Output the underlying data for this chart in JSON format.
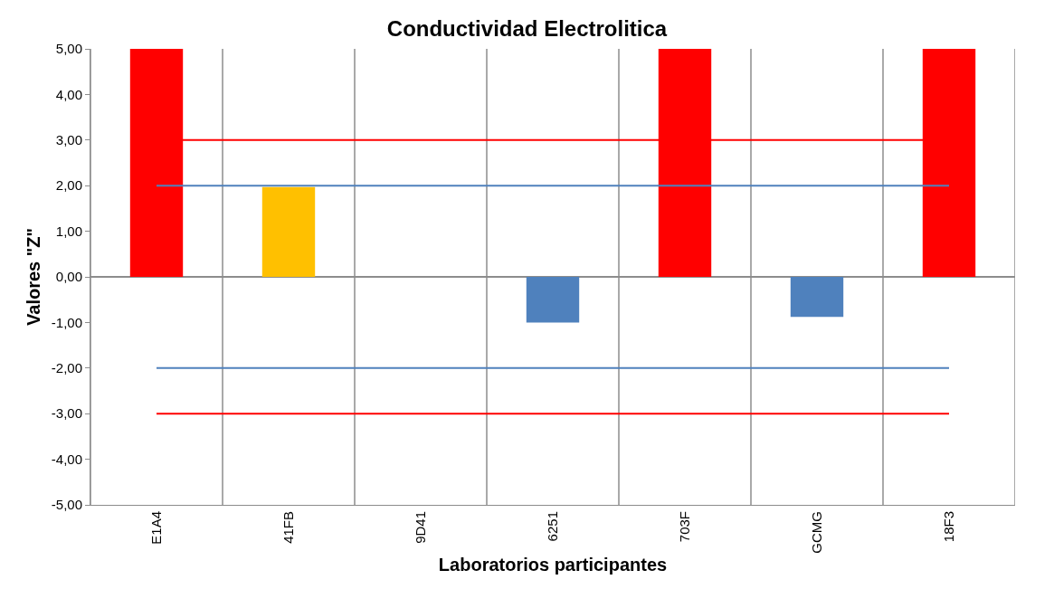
{
  "chart_data": {
    "type": "bar",
    "title": "Conductividad Electrolitica",
    "xlabel": "Laboratorios participantes",
    "ylabel": "Valores \"Z\"",
    "categories": [
      "E1A4",
      "41FB",
      "9D41",
      "6251",
      "703F",
      "GCMG",
      "18F3"
    ],
    "values": [
      5,
      1.97,
      0,
      -1.0,
      5,
      -0.88,
      5
    ],
    "colors": [
      "#ff0000",
      "#ffc000",
      "#4f81bd",
      "#4f81bd",
      "#ff0000",
      "#4f81bd",
      "#ff0000"
    ],
    "ylim": [
      -5,
      5
    ],
    "yticks": [
      {
        "value": -5,
        "label": "-5,00"
      },
      {
        "value": -4,
        "label": "-4,00"
      },
      {
        "value": -3,
        "label": "-3,00"
      },
      {
        "value": -2,
        "label": "-2,00"
      },
      {
        "value": -1,
        "label": "-1,00"
      },
      {
        "value": 0,
        "label": "0,00"
      },
      {
        "value": 1,
        "label": "1,00"
      },
      {
        "value": 2,
        "label": "2,00"
      },
      {
        "value": 3,
        "label": "3,00"
      },
      {
        "value": 4,
        "label": "4,00"
      },
      {
        "value": 5,
        "label": "5,00"
      }
    ],
    "ref_lines": [
      {
        "axis": "y",
        "value": 3,
        "color": "#ff0000"
      },
      {
        "axis": "y",
        "value": -3,
        "color": "#ff0000"
      },
      {
        "axis": "y",
        "value": 2,
        "color": "#4f81bd"
      },
      {
        "axis": "y",
        "value": -2,
        "color": "#4f81bd"
      }
    ],
    "grid": "x"
  }
}
